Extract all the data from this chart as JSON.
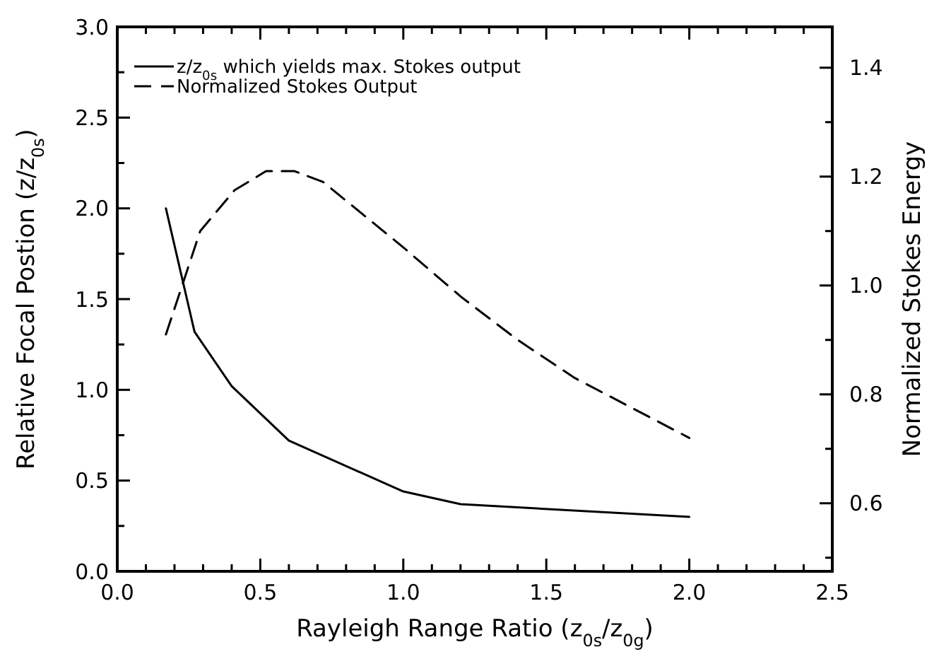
{
  "chart_data": {
    "type": "line",
    "xlabel": "Rayleigh Range Ratio (z$_{0s}$/z$_{0g}$)",
    "ylabel": "Relative Focal Postion (z/z$_{0s}$)",
    "y2label": "Normalized Stokes Energy",
    "xlim": [
      0,
      2.5
    ],
    "ylim": [
      0,
      3
    ],
    "y2lim": [
      0.475,
      1.475
    ],
    "xticks": [
      {
        "value": 0,
        "label": "0.0"
      },
      {
        "value": 0.1,
        "label": null
      },
      {
        "value": 0.2,
        "label": null
      },
      {
        "value": 0.3,
        "label": null
      },
      {
        "value": 0.4,
        "label": null
      },
      {
        "value": 0.5,
        "label": "0.5"
      },
      {
        "value": 0.6,
        "label": null
      },
      {
        "value": 0.7,
        "label": null
      },
      {
        "value": 0.8,
        "label": null
      },
      {
        "value": 0.9,
        "label": null
      },
      {
        "value": 1,
        "label": "1.0"
      },
      {
        "value": 1.1,
        "label": null
      },
      {
        "value": 1.2,
        "label": null
      },
      {
        "value": 1.3,
        "label": null
      },
      {
        "value": 1.4,
        "label": null
      },
      {
        "value": 1.5,
        "label": "1.5"
      },
      {
        "value": 1.6,
        "label": null
      },
      {
        "value": 1.7,
        "label": null
      },
      {
        "value": 1.8,
        "label": null
      },
      {
        "value": 1.9,
        "label": null
      },
      {
        "value": 2,
        "label": "2.0"
      },
      {
        "value": 2.1,
        "label": null
      },
      {
        "value": 2.2,
        "label": null
      },
      {
        "value": 2.3,
        "label": null
      },
      {
        "value": 2.4,
        "label": null
      },
      {
        "value": 2.5,
        "label": "2.5"
      }
    ],
    "yticks": [
      {
        "value": 0,
        "label": "0.0"
      },
      {
        "value": 0.25,
        "label": null
      },
      {
        "value": 0.5,
        "label": "0.5"
      },
      {
        "value": 0.75,
        "label": null
      },
      {
        "value": 1,
        "label": "1.0"
      },
      {
        "value": 1.25,
        "label": null
      },
      {
        "value": 1.5,
        "label": "1.5"
      },
      {
        "value": 1.75,
        "label": null
      },
      {
        "value": 2,
        "label": "2.0"
      },
      {
        "value": 2.25,
        "label": null
      },
      {
        "value": 2.5,
        "label": "2.5"
      },
      {
        "value": 2.75,
        "label": null
      },
      {
        "value": 3,
        "label": "3.0"
      }
    ],
    "y2ticks": [
      {
        "value": 0.5,
        "label": null
      },
      {
        "value": 0.6,
        "label": "0.6"
      },
      {
        "value": 0.7,
        "label": null
      },
      {
        "value": 0.8,
        "label": "0.8"
      },
      {
        "value": 0.9,
        "label": null
      },
      {
        "value": 1,
        "label": "1.0"
      },
      {
        "value": 1.1,
        "label": null
      },
      {
        "value": 1.2,
        "label": "1.2"
      },
      {
        "value": 1.3,
        "label": null
      },
      {
        "value": 1.4,
        "label": "1.4"
      }
    ],
    "legend": "top left",
    "grid": false,
    "marker": "none",
    "series": [
      {
        "name": "z/z$_{0s}$ which yields max. Stokes output",
        "color": "#000000",
        "line_style": "solid",
        "x": [
          0.17,
          0.27,
          0.4,
          0.6,
          1.0,
          1.2,
          2.0
        ],
        "values": [
          2.0,
          1.32,
          1.02,
          0.72,
          0.44,
          0.37,
          0.3
        ]
      },
      {
        "name": "Normalized Stokes Output",
        "color": "#000000",
        "line_style": "dashed",
        "axis": "y2",
        "x": [
          0.17,
          0.29,
          0.41,
          0.52,
          0.62,
          0.72,
          1.0,
          1.2,
          1.4,
          1.6,
          2.0
        ],
        "values": [
          0.91,
          1.1,
          1.175,
          1.21,
          1.21,
          1.19,
          1.07,
          0.98,
          0.9,
          0.83,
          0.72
        ]
      }
    ]
  }
}
